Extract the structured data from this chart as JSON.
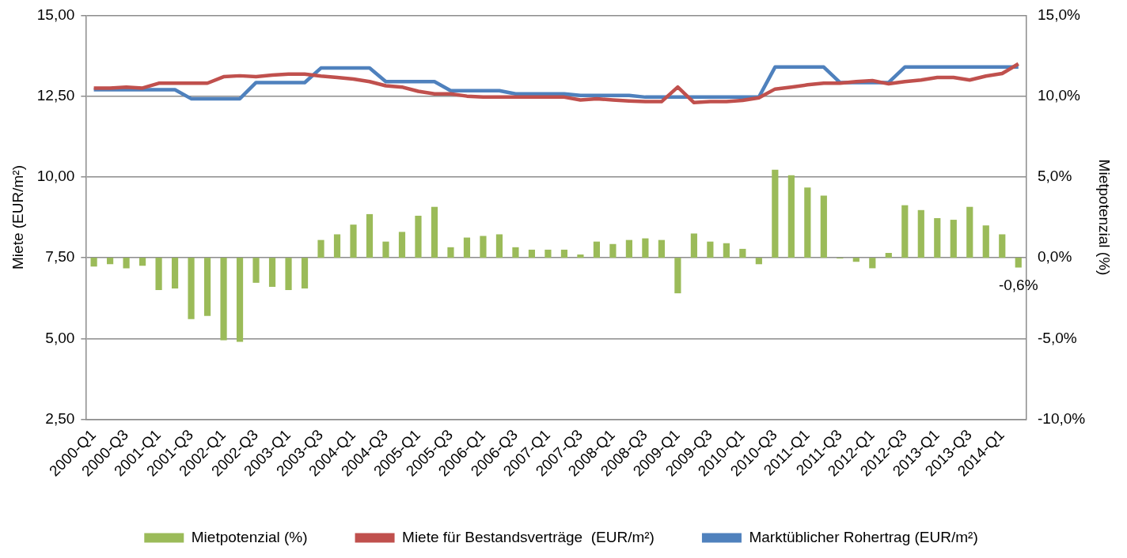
{
  "chart_data": {
    "type": "bar",
    "ylabel": "Miete (EUR/m²)",
    "y2label": "Mietpotenzial (%)",
    "categories": [
      "2000-Q1",
      null,
      "2000-Q3",
      null,
      "2001-Q1",
      null,
      "2001-Q3",
      null,
      "2002-Q1",
      null,
      "2002-Q3",
      null,
      "2003-Q1",
      null,
      "2003-Q3",
      null,
      "2004-Q1",
      null,
      "2004-Q3",
      null,
      "2005-Q1",
      null,
      "2005-Q3",
      null,
      "2006-Q1",
      null,
      "2006-Q3",
      null,
      "2007-Q1",
      null,
      "2007-Q3",
      null,
      "2008-Q1",
      null,
      "2008-Q3",
      null,
      "2009-Q1",
      null,
      "2009-Q3",
      null,
      "2010-Q1",
      null,
      "2010-Q3",
      null,
      "2011-Q1",
      null,
      "2011-Q3",
      null,
      "2012-Q1",
      null,
      "2012-Q3",
      null,
      "2013-Q1",
      null,
      "2013-Q3",
      null,
      "2014-Q1",
      null
    ],
    "series": [
      {
        "name": "Mietpotenzial (%)",
        "type": "bar",
        "axis": "y2",
        "color": "#9bbb59",
        "values": [
          -0.55,
          -0.4,
          -0.65,
          -0.5,
          -2.0,
          -1.9,
          -3.8,
          -3.6,
          -5.1,
          -5.2,
          -1.55,
          -1.8,
          -2.0,
          -1.9,
          1.1,
          1.45,
          2.05,
          2.7,
          1.0,
          1.6,
          2.6,
          3.15,
          0.65,
          1.25,
          1.35,
          1.45,
          0.65,
          0.5,
          0.5,
          0.5,
          0.2,
          1.0,
          0.85,
          1.1,
          1.2,
          1.1,
          -2.2,
          1.5,
          1.0,
          0.9,
          0.55,
          -0.4,
          5.45,
          5.1,
          4.35,
          3.85,
          -0.05,
          -0.25,
          -0.65,
          0.3,
          3.25,
          2.95,
          2.45,
          2.35,
          3.15,
          2.0,
          1.45,
          -0.6
        ],
        "value_labels": [
          null,
          null,
          null,
          null,
          null,
          null,
          null,
          null,
          null,
          null,
          null,
          null,
          null,
          null,
          null,
          null,
          null,
          null,
          null,
          null,
          null,
          null,
          null,
          null,
          null,
          null,
          null,
          null,
          null,
          null,
          null,
          null,
          null,
          null,
          null,
          null,
          null,
          null,
          null,
          null,
          null,
          null,
          null,
          null,
          null,
          null,
          null,
          null,
          null,
          null,
          null,
          null,
          null,
          null,
          null,
          null,
          null,
          "-0,6%"
        ]
      },
      {
        "name": "Miete für Bestandsverträge  (EUR/m²)",
        "type": "line",
        "axis": "y",
        "color": "#c0504d",
        "values": [
          12.75,
          12.75,
          12.78,
          12.75,
          12.9,
          12.9,
          12.9,
          12.9,
          13.1,
          13.13,
          13.1,
          13.15,
          13.18,
          13.18,
          13.12,
          13.08,
          13.03,
          12.95,
          12.82,
          12.78,
          12.65,
          12.57,
          12.57,
          12.5,
          12.47,
          12.47,
          12.47,
          12.47,
          12.47,
          12.47,
          12.38,
          12.42,
          12.38,
          12.35,
          12.33,
          12.33,
          12.78,
          12.3,
          12.33,
          12.33,
          12.37,
          12.45,
          12.72,
          12.78,
          12.85,
          12.9,
          12.9,
          12.95,
          12.98,
          12.88,
          12.95,
          13.0,
          13.08,
          13.08,
          13.0,
          13.12,
          13.2,
          13.5
        ]
      },
      {
        "name": "Marktüblicher Rohertrag (EUR/m²)",
        "type": "line",
        "axis": "y",
        "color": "#4f81bd",
        "values": [
          12.7,
          12.7,
          12.7,
          12.7,
          12.7,
          12.7,
          12.42,
          12.42,
          12.42,
          12.42,
          12.92,
          12.92,
          12.92,
          12.92,
          13.37,
          13.37,
          13.37,
          13.37,
          12.95,
          12.95,
          12.95,
          12.95,
          12.67,
          12.67,
          12.67,
          12.67,
          12.57,
          12.57,
          12.57,
          12.57,
          12.52,
          12.52,
          12.52,
          12.52,
          12.47,
          12.47,
          12.47,
          12.47,
          12.47,
          12.47,
          12.47,
          12.47,
          13.4,
          13.4,
          13.4,
          13.4,
          12.92,
          12.92,
          12.92,
          12.92,
          13.4,
          13.4,
          13.4,
          13.4,
          13.4,
          13.4,
          13.4,
          13.4
        ]
      }
    ],
    "ylim": [
      2.5,
      15
    ],
    "yticks": [
      {
        "value": 2.5,
        "label": "2,50"
      },
      {
        "value": 5,
        "label": "5,00"
      },
      {
        "value": 7.5,
        "label": "7,50"
      },
      {
        "value": 10,
        "label": "10,00"
      },
      {
        "value": 12.5,
        "label": "12,50"
      },
      {
        "value": 15,
        "label": "15,00"
      }
    ],
    "y2lim": [
      -10,
      15
    ],
    "y2ticks": [
      {
        "value": -10,
        "label": "-10,0%"
      },
      {
        "value": -5,
        "label": "-5,0%"
      },
      {
        "value": 0,
        "label": "0,0%"
      },
      {
        "value": 5,
        "label": "5,0%"
      },
      {
        "value": 10,
        "label": "10,0%"
      },
      {
        "value": 15,
        "label": "15,0%"
      }
    ],
    "grid": "y",
    "legend": "bottom",
    "line_style": "solid",
    "marker": "none"
  }
}
